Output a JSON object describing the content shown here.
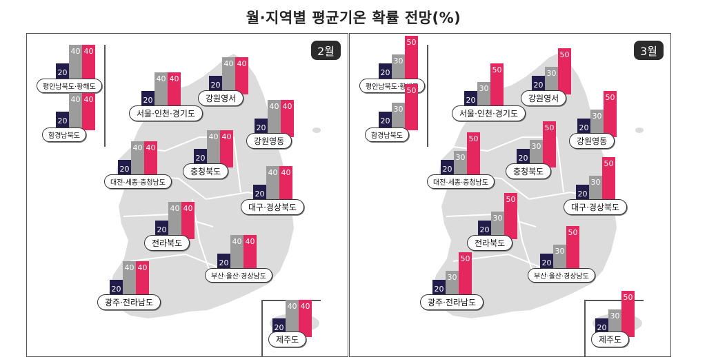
{
  "title": "월·지역별 평균기온 확률 전망(%)",
  "colors": {
    "above": "#e6275f",
    "normal": "#9c9c9c",
    "below": "#211c4a",
    "map": "#dcdcdc"
  },
  "panels": [
    {
      "month": "2월",
      "regions": [
        {
          "name": "평안남북도·황해도",
          "values": [
            "20",
            "40",
            "40"
          ]
        },
        {
          "name": "함경남북도",
          "values": [
            "20",
            "40",
            "40"
          ]
        },
        {
          "name": "서울·인천·경기도",
          "values": [
            "20",
            "40",
            "40"
          ]
        },
        {
          "name": "강원영서",
          "values": [
            "20",
            "40",
            "40"
          ]
        },
        {
          "name": "강원영동",
          "values": [
            "20",
            "40",
            "40"
          ]
        },
        {
          "name": "대전·세종·충청남도",
          "values": [
            "20",
            "40",
            "40"
          ]
        },
        {
          "name": "충청북도",
          "values": [
            "20",
            "40",
            "40"
          ]
        },
        {
          "name": "대구·경상북도",
          "values": [
            "20",
            "40",
            "40"
          ]
        },
        {
          "name": "전라북도",
          "values": [
            "20",
            "40",
            "40"
          ]
        },
        {
          "name": "부산·울산·경상남도",
          "values": [
            "20",
            "40",
            "40"
          ]
        },
        {
          "name": "광주·전라남도",
          "values": [
            "20",
            "40",
            "40"
          ]
        },
        {
          "name": "제주도",
          "values": [
            "20",
            "40",
            "40"
          ]
        }
      ]
    },
    {
      "month": "3월",
      "regions": [
        {
          "name": "평안남북도·황해도",
          "values": [
            "20",
            "30",
            "50"
          ]
        },
        {
          "name": "함경남북도",
          "values": [
            "20",
            "30",
            "50"
          ]
        },
        {
          "name": "서울·인천·경기도",
          "values": [
            "20",
            "30",
            "50"
          ]
        },
        {
          "name": "강원영서",
          "values": [
            "20",
            "30",
            "50"
          ]
        },
        {
          "name": "강원영동",
          "values": [
            "20",
            "30",
            "50"
          ]
        },
        {
          "name": "대전·세종·충청남도",
          "values": [
            "20",
            "30",
            "50"
          ]
        },
        {
          "name": "충청북도",
          "values": [
            "20",
            "30",
            "50"
          ]
        },
        {
          "name": "대구·경상북도",
          "values": [
            "20",
            "30",
            "50"
          ]
        },
        {
          "name": "전라북도",
          "values": [
            "20",
            "30",
            "50"
          ]
        },
        {
          "name": "부산·울산·경상남도",
          "values": [
            "20",
            "30",
            "50"
          ]
        },
        {
          "name": "광주·전라남도",
          "values": [
            "20",
            "30",
            "50"
          ]
        },
        {
          "name": "제주도",
          "values": [
            "20",
            "30",
            "50"
          ]
        }
      ]
    }
  ]
}
